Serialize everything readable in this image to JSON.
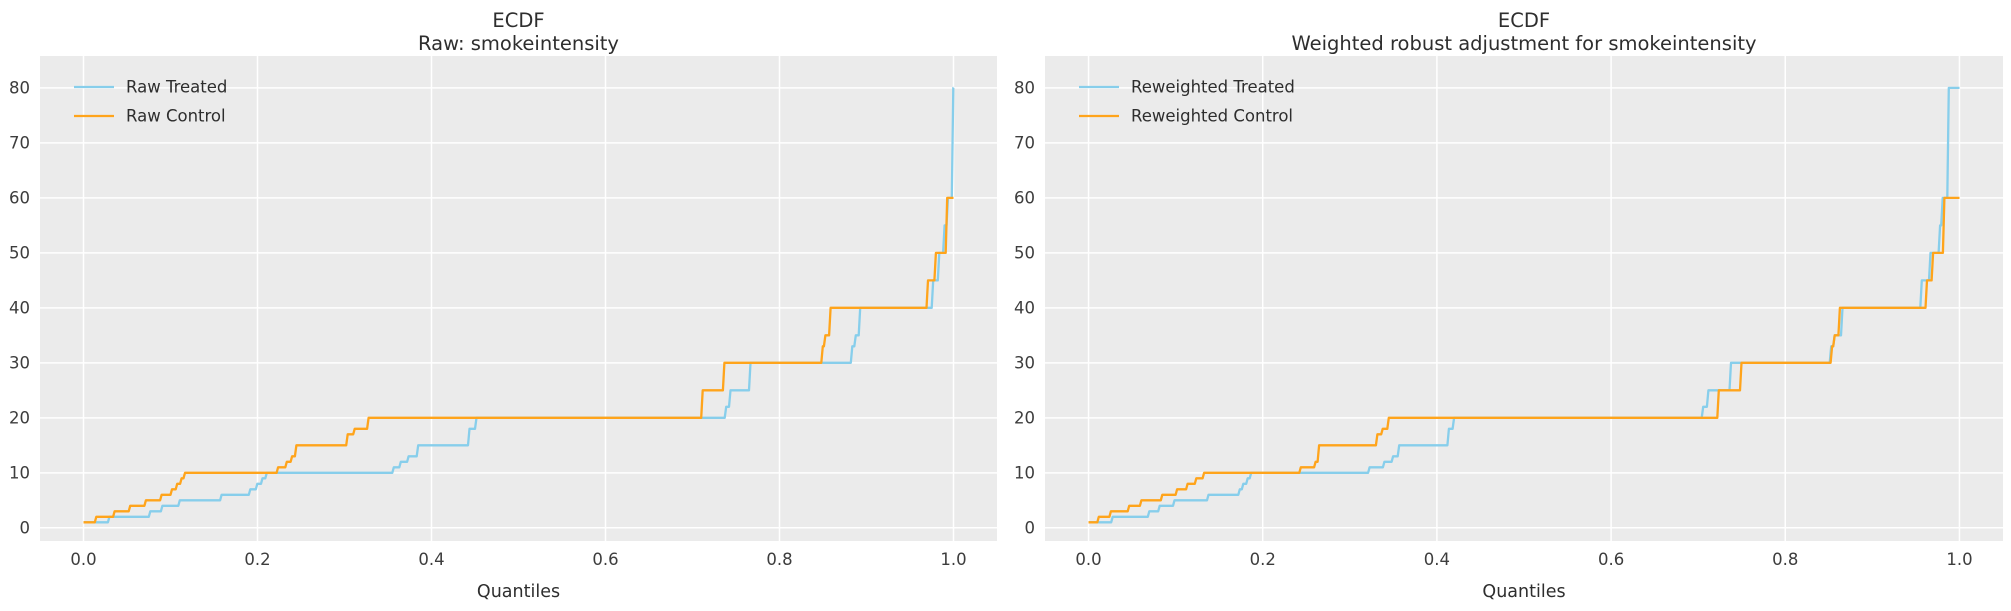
{
  "figure": {
    "background": "#ffffff",
    "plot_background": "#ebebeb",
    "grid_color": "#ffffff",
    "tick_color": "#3d3d3d",
    "title_color": "#2e2e2e",
    "treated_color": "#87CEEB",
    "control_color": "#FFA41B"
  },
  "chart_data": [
    {
      "type": "line",
      "line_style": "ecdf-quantile-steps",
      "title": "ECDF",
      "subtitle": "Raw: smokeintensity",
      "xlabel": "Quantiles",
      "ylabel": "",
      "xlim": [
        -0.05,
        1.05
      ],
      "ylim": [
        -2.4,
        85.8
      ],
      "xticks": [
        0.0,
        0.2,
        0.4,
        0.6,
        0.8,
        1.0
      ],
      "yticks": [
        0,
        10,
        20,
        30,
        40,
        50,
        60,
        70,
        80
      ],
      "grid": true,
      "legend_position": "upper left",
      "series": [
        {
          "name": "Raw Treated",
          "color": "#87CEEB",
          "points": [
            [
              0,
              1
            ],
            [
              0.028,
              2
            ],
            [
              0.075,
              3
            ],
            [
              0.089,
              4
            ],
            [
              0.109,
              5
            ],
            [
              0.157,
              6
            ],
            [
              0.19,
              7
            ],
            [
              0.198,
              8
            ],
            [
              0.204,
              9
            ],
            [
              0.209,
              10
            ],
            [
              0.355,
              11
            ],
            [
              0.363,
              12
            ],
            [
              0.372,
              13
            ],
            [
              0.383,
              15
            ],
            [
              0.442,
              18
            ],
            [
              0.45,
              20
            ],
            [
              0.737,
              22
            ],
            [
              0.742,
              25
            ],
            [
              0.765,
              30
            ],
            [
              0.882,
              33
            ],
            [
              0.886,
              35
            ],
            [
              0.891,
              40
            ],
            [
              0.975,
              45
            ],
            [
              0.982,
              50
            ],
            [
              0.988,
              55
            ],
            [
              0.992,
              60
            ],
            [
              0.998,
              80
            ],
            [
              1.0,
              80
            ]
          ]
        },
        {
          "name": "Raw Control",
          "color": "#FFA41B",
          "points": [
            [
              0,
              1
            ],
            [
              0.013,
              2
            ],
            [
              0.034,
              3
            ],
            [
              0.052,
              4
            ],
            [
              0.07,
              5
            ],
            [
              0.088,
              6
            ],
            [
              0.1,
              7
            ],
            [
              0.106,
              8
            ],
            [
              0.111,
              9
            ],
            [
              0.115,
              10
            ],
            [
              0.222,
              11
            ],
            [
              0.232,
              12
            ],
            [
              0.238,
              13
            ],
            [
              0.243,
              15
            ],
            [
              0.302,
              17
            ],
            [
              0.31,
              18
            ],
            [
              0.326,
              20
            ],
            [
              0.71,
              25
            ],
            [
              0.735,
              30
            ],
            [
              0.848,
              33
            ],
            [
              0.851,
              35
            ],
            [
              0.857,
              40
            ],
            [
              0.969,
              45
            ],
            [
              0.978,
              50
            ],
            [
              0.991,
              60
            ],
            [
              1.0,
              60
            ]
          ]
        }
      ]
    },
    {
      "type": "line",
      "line_style": "ecdf-quantile-steps",
      "title": "ECDF",
      "subtitle": "Weighted robust adjustment for smokeintensity",
      "xlabel": "Quantiles",
      "ylabel": "",
      "xlim": [
        -0.05,
        1.05
      ],
      "ylim": [
        -2.4,
        85.8
      ],
      "xticks": [
        0.0,
        0.2,
        0.4,
        0.6,
        0.8,
        1.0
      ],
      "yticks": [
        0,
        10,
        20,
        30,
        40,
        50,
        60,
        70,
        80
      ],
      "grid": true,
      "legend_position": "upper left",
      "series": [
        {
          "name": "Reweighted Treated",
          "color": "#87CEEB",
          "points": [
            [
              0,
              1
            ],
            [
              0.026,
              2
            ],
            [
              0.068,
              3
            ],
            [
              0.08,
              4
            ],
            [
              0.097,
              5
            ],
            [
              0.136,
              6
            ],
            [
              0.172,
              7
            ],
            [
              0.176,
              8
            ],
            [
              0.181,
              9
            ],
            [
              0.185,
              10
            ],
            [
              0.321,
              11
            ],
            [
              0.338,
              12
            ],
            [
              0.348,
              13
            ],
            [
              0.355,
              15
            ],
            [
              0.412,
              18
            ],
            [
              0.418,
              20
            ],
            [
              0.704,
              22
            ],
            [
              0.71,
              25
            ],
            [
              0.736,
              30
            ],
            [
              0.851,
              33
            ],
            [
              0.855,
              35
            ],
            [
              0.864,
              40
            ],
            [
              0.955,
              45
            ],
            [
              0.965,
              50
            ],
            [
              0.976,
              55
            ],
            [
              0.979,
              60
            ],
            [
              0.986,
              80
            ],
            [
              1.0,
              80
            ]
          ]
        },
        {
          "name": "Reweighted Control",
          "color": "#FFA41B",
          "points": [
            [
              0,
              1
            ],
            [
              0.01,
              2
            ],
            [
              0.024,
              3
            ],
            [
              0.045,
              4
            ],
            [
              0.059,
              5
            ],
            [
              0.083,
              6
            ],
            [
              0.1,
              7
            ],
            [
              0.112,
              8
            ],
            [
              0.122,
              9
            ],
            [
              0.131,
              10
            ],
            [
              0.242,
              11
            ],
            [
              0.259,
              12
            ],
            [
              0.263,
              15
            ],
            [
              0.33,
              17
            ],
            [
              0.336,
              18
            ],
            [
              0.343,
              20
            ],
            [
              0.722,
              25
            ],
            [
              0.748,
              30
            ],
            [
              0.852,
              33
            ],
            [
              0.855,
              35
            ],
            [
              0.861,
              40
            ],
            [
              0.961,
              45
            ],
            [
              0.968,
              50
            ],
            [
              0.981,
              60
            ],
            [
              1.0,
              60
            ]
          ]
        }
      ]
    }
  ]
}
